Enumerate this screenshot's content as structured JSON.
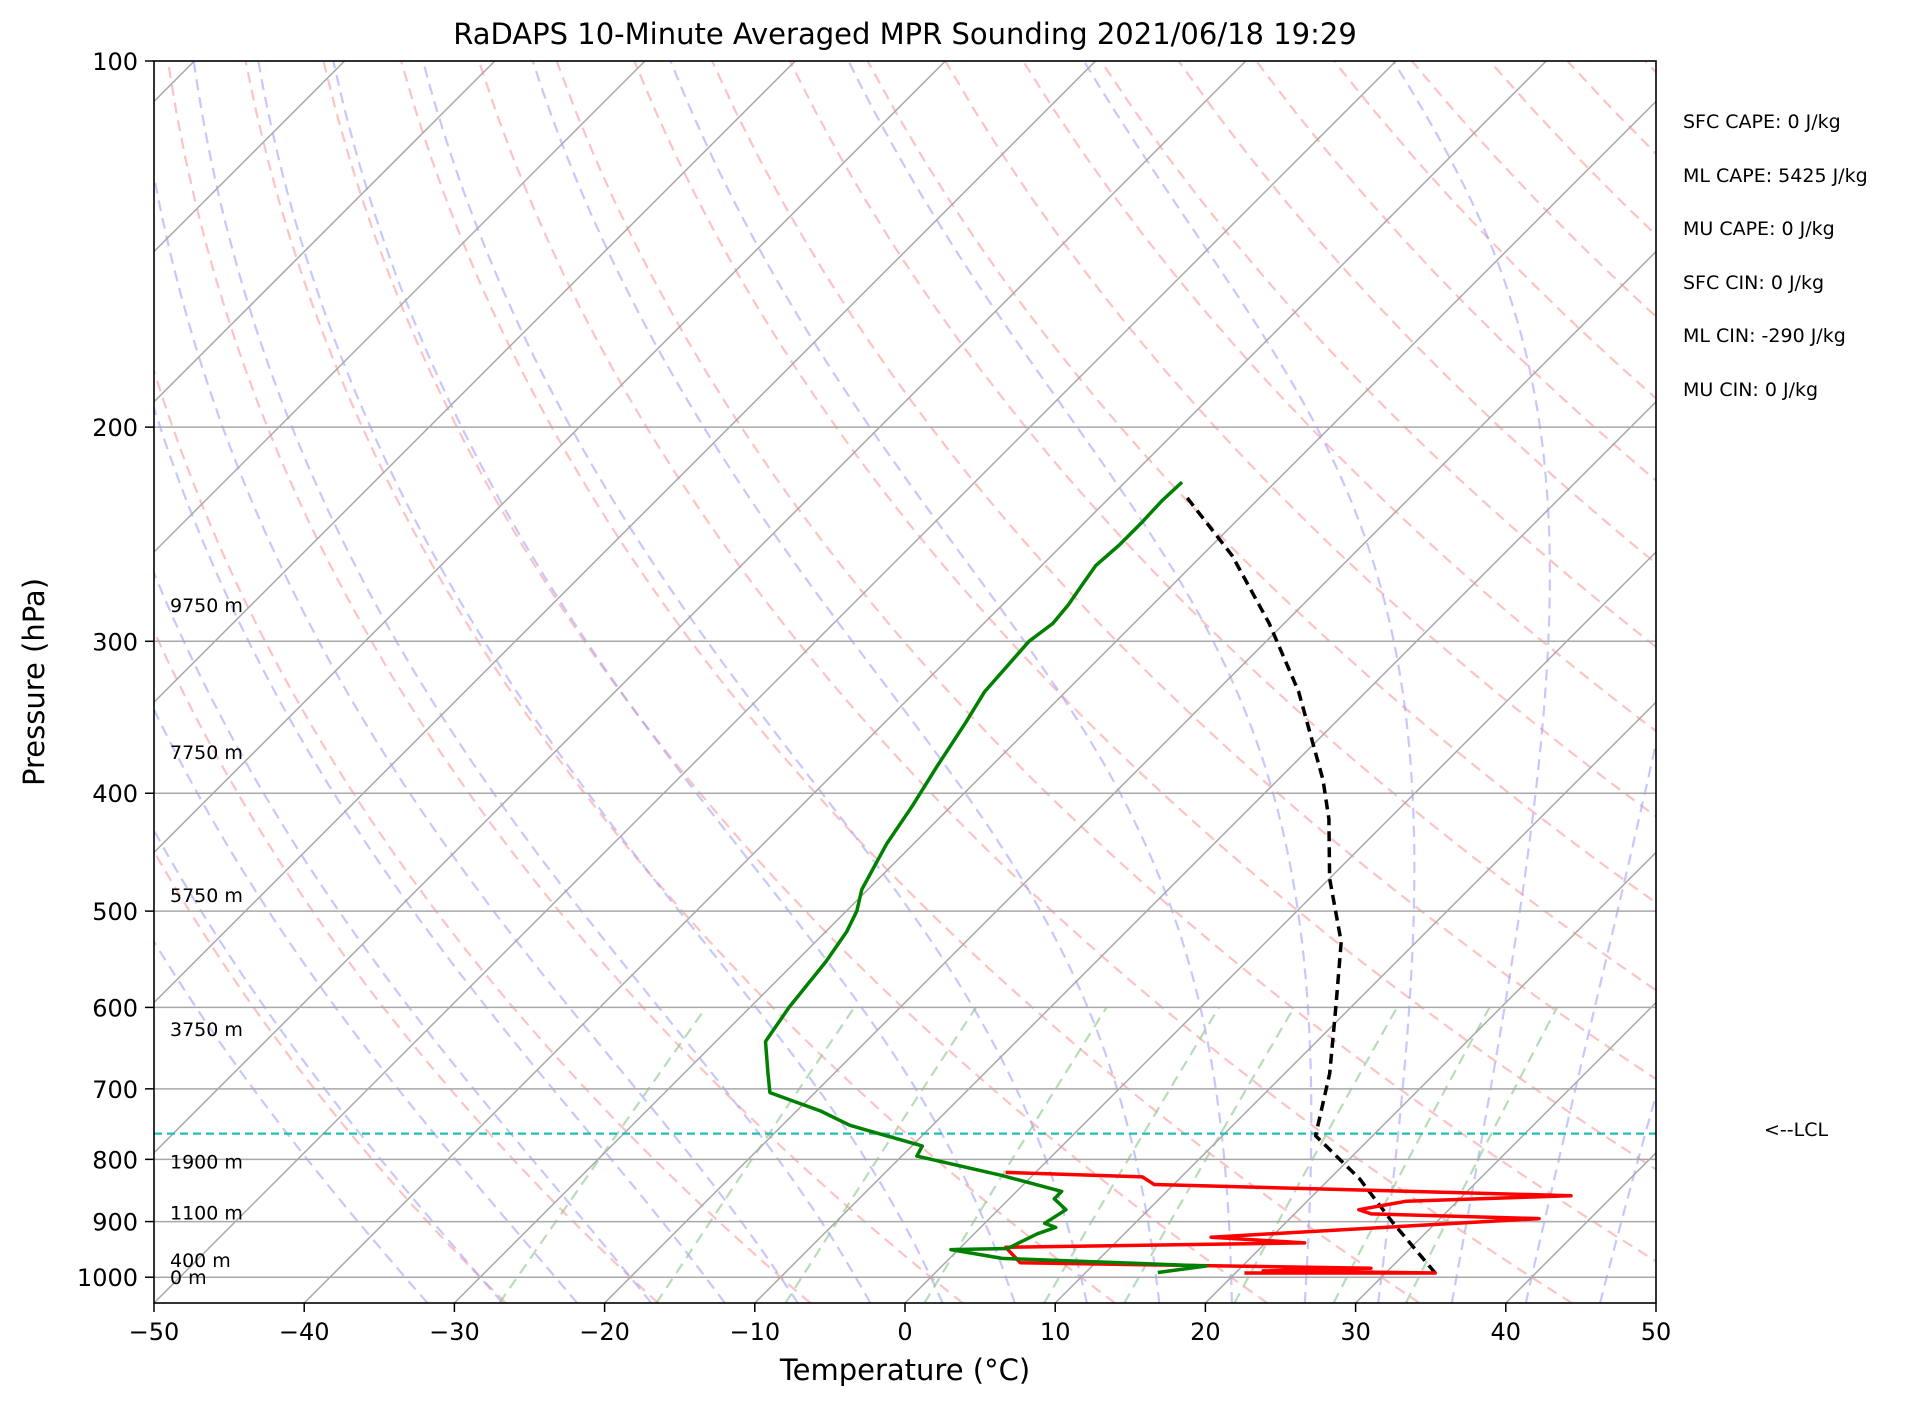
{
  "chart_data": {
    "type": "line",
    "title": "RaDAPS 10-Minute Averaged MPR Sounding 2021/06/18 19:29",
    "xlabel": "Temperature (°C)",
    "ylabel": "Pressure (hPa)",
    "xlim": [
      -50,
      50
    ],
    "ylim_hpa": [
      1050,
      100
    ],
    "y_scale": "log",
    "x_ticks": [
      "−50",
      "−40",
      "−30",
      "−20",
      "−10",
      "0",
      "10",
      "20",
      "30",
      "40",
      "50"
    ],
    "y_ticks": [
      "100",
      "200",
      "300",
      "400",
      "500",
      "600",
      "700",
      "800",
      "900",
      "1000"
    ],
    "grid": true,
    "skew": true,
    "temperature": {
      "color": "#ff0000",
      "points": [
        [
          20.6,
          992
        ],
        [
          33.3,
          992
        ],
        [
          21.7,
          988
        ],
        [
          28.7,
          983
        ],
        [
          5.0,
          973
        ],
        [
          3.0,
          945
        ],
        [
          22.6,
          937
        ],
        [
          16.0,
          927
        ],
        [
          36.6,
          895
        ],
        [
          25.1,
          887
        ],
        [
          24.0,
          880
        ],
        [
          26.6,
          866
        ],
        [
          37.2,
          857
        ],
        [
          8.7,
          839
        ],
        [
          7.4,
          827
        ],
        [
          -2.0,
          820
        ]
      ]
    },
    "dewpoint": {
      "color": "#008000",
      "points": [
        [
          14.8,
          991
        ],
        [
          17.6,
          979
        ],
        [
          3.5,
          965
        ],
        [
          -0.5,
          949
        ],
        [
          3.2,
          947
        ],
        [
          3.9,
          929
        ],
        [
          4.2,
          921
        ],
        [
          5.0,
          910
        ],
        [
          4.0,
          903
        ],
        [
          4.5,
          880
        ],
        [
          3.0,
          862
        ],
        [
          3.0,
          850
        ],
        [
          -2.0,
          825
        ],
        [
          -9.0,
          795
        ],
        [
          -9.3,
          780
        ],
        [
          -15.5,
          750
        ],
        [
          -18.4,
          730
        ],
        [
          -23.0,
          705
        ],
        [
          -24.4,
          680
        ],
        [
          -26.7,
          640
        ],
        [
          -27.4,
          600
        ],
        [
          -28.0,
          550
        ],
        [
          -28.6,
          520
        ],
        [
          -29.3,
          500
        ],
        [
          -30.4,
          480
        ],
        [
          -31.8,
          440
        ],
        [
          -32.6,
          410
        ],
        [
          -33.6,
          380
        ],
        [
          -34.6,
          350
        ],
        [
          -35.4,
          330
        ],
        [
          -35.8,
          300
        ],
        [
          -35.4,
          290
        ],
        [
          -35.6,
          280
        ],
        [
          -36.0,
          270
        ],
        [
          -36.4,
          260
        ],
        [
          -36.2,
          250
        ],
        [
          -36.2,
          240
        ],
        [
          -36.3,
          230
        ],
        [
          -36.2,
          222
        ]
      ]
    },
    "parcel": {
      "color": "#000000",
      "points": [
        [
          33.3,
          992
        ],
        [
          27.0,
          900
        ],
        [
          22.0,
          830
        ],
        [
          16.2,
          765
        ],
        [
          13.0,
          680
        ],
        [
          9.0,
          600
        ],
        [
          5.0,
          530
        ],
        [
          0.0,
          470
        ],
        [
          -4.0,
          420
        ],
        [
          -7.0,
          390
        ],
        [
          -14.5,
          330
        ],
        [
          -21.0,
          290
        ],
        [
          -28.0,
          255
        ],
        [
          -35.0,
          228
        ]
      ]
    },
    "lcl_hpa": 762,
    "lcl_label": "<--LCL",
    "height_labels": [
      {
        "text": "9750 m",
        "p": 280
      },
      {
        "text": "7750 m",
        "p": 370
      },
      {
        "text": "5750 m",
        "p": 485
      },
      {
        "text": "3750 m",
        "p": 625
      },
      {
        "text": "1900 m",
        "p": 803
      },
      {
        "text": "1100 m",
        "p": 885
      },
      {
        "text": "400 m",
        "p": 968
      },
      {
        "text": "0 m",
        "p": 1000
      }
    ],
    "indices": [
      "SFC CAPE: 0 J/kg",
      "ML CAPE: 5425 J/kg",
      "MU CAPE: 0 J/kg",
      "SFC CIN: 0 J/kg",
      "ML CIN: -290 J/kg",
      "MU CIN: 0 J/kg"
    ],
    "colors": {
      "dry_adiabat": "#ff9999",
      "moist_adiabat": "#9999ff",
      "mixing_ratio": "#88c488",
      "lcl_line": "#20c0b0",
      "grid": "#b0b0b0"
    }
  }
}
